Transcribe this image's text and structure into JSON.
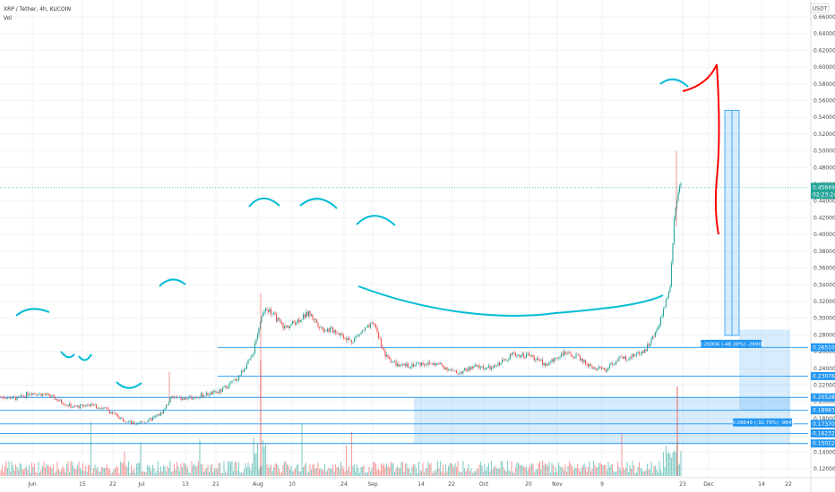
{
  "header": {
    "pair": "XRP / Tether, 4h, KUCOIN",
    "indicator": "Vol",
    "currency": "USDT"
  },
  "chart_data": {
    "type": "candlestick",
    "ylim": [
      0.121,
      0.677
    ],
    "price_ticks": [
      "0.66000",
      "0.64000",
      "0.62000",
      "0.60000",
      "0.58000",
      "0.56000",
      "0.54000",
      "0.52000",
      "0.50000",
      "0.48000",
      "0.46000",
      "0.44000",
      "0.42000",
      "0.40000",
      "0.38000",
      "0.36000",
      "0.34000",
      "0.32000",
      "0.30000",
      "0.28000",
      "0.26000",
      "0.24000",
      "0.22000",
      "0.20000",
      "0.18000",
      "0.16000",
      "0.14000",
      "0.12000"
    ],
    "x_ticks": [
      "Jun",
      "15",
      "22",
      "Jul",
      "13",
      "21",
      "Aug",
      "10",
      "24",
      "Sep",
      "14",
      "22",
      "Oct",
      "20",
      "Nov",
      "9",
      "23",
      "Dec",
      "14",
      "22"
    ],
    "current_price": {
      "value": "0.45649",
      "countdown": "02:23:24"
    },
    "level_labels": [
      "0.26510",
      "0.23076",
      "0.20528",
      "0.18983",
      "0.17370",
      "0.16232",
      "0.15022"
    ],
    "measures": [
      {
        "label": "-0.26906 (-48.38%) -26906"
      },
      {
        "label": "-0.09649 (-32.79%) -9649"
      }
    ],
    "colors": {
      "up": "#26a69a",
      "down": "#ef5350",
      "level": "#2196f3",
      "drawing": "#00bcd4",
      "arrow": "#ff0000",
      "label_bg": "#2196f3",
      "current_bg": "#26a69a"
    }
  }
}
